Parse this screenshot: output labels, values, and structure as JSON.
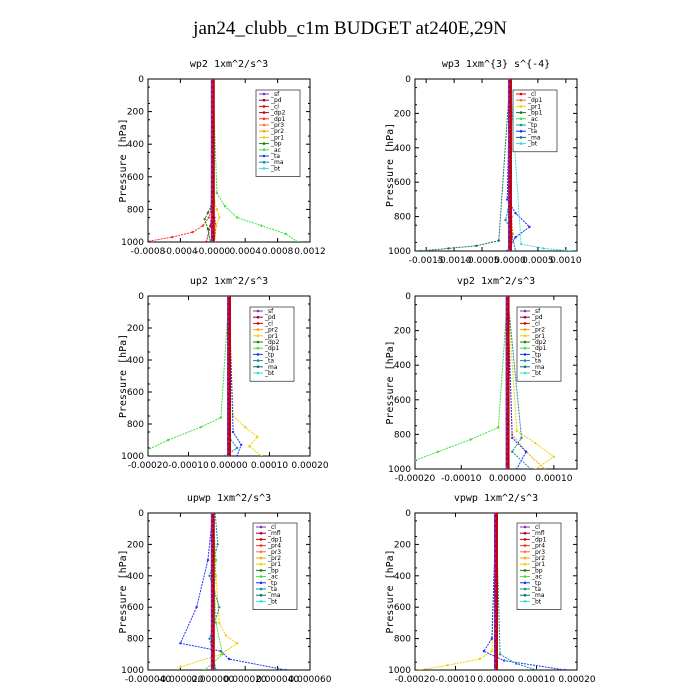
{
  "title": "jan24_clubb_c1m  BUDGET at240E,29N",
  "chart_data": [
    {
      "type": "line",
      "title": "wp2   1xm^2/s^3",
      "ylabel": "Pressure [hPa]",
      "xlim": [
        -0.0008,
        0.0012
      ],
      "ylim": [
        1000,
        0
      ],
      "xticks": [
        "-0.0008",
        "-0.0004",
        "-0.0000",
        "0.0004",
        "0.0008",
        "0.0012"
      ],
      "xtick_values": [
        -0.0008,
        -0.0004,
        0,
        0.0004,
        0.0008,
        0.0012
      ],
      "yticks": [
        "0",
        "200",
        "400",
        "600",
        "800",
        "1000"
      ],
      "legend": [
        "_sf",
        "_pd",
        "_cl",
        "_dp2",
        "_dp1",
        "_pr3",
        "_pr2",
        "_pr1",
        "_bp",
        "_ac",
        "_ta",
        "_ma",
        "_bt"
      ],
      "colors": [
        "#8030c0",
        "#a00040",
        "#e00000",
        "#c00010",
        "#ff3030",
        "#ff7030",
        "#ffa000",
        "#f0d000",
        "#108010",
        "#40e040",
        "#2030ff",
        "#1090a0",
        "#30e0e0"
      ],
      "series": [
        {
          "name": "_sf",
          "x": [
            0,
            0
          ],
          "y": [
            0,
            1000
          ]
        },
        {
          "name": "_pd",
          "x": [
            0,
            0,
            0,
            0
          ],
          "y": [
            0,
            800,
            900,
            1000
          ]
        },
        {
          "name": "_cl",
          "x": [
            0,
            0,
            0,
            0,
            2e-05,
            4e-05,
            2e-05
          ],
          "y": [
            0,
            600,
            750,
            800,
            850,
            900,
            1000
          ]
        },
        {
          "name": "_dp2",
          "x": [
            0,
            0,
            -1e-05,
            -3e-05,
            -8e-05
          ],
          "y": [
            0,
            600,
            800,
            900,
            1000
          ]
        },
        {
          "name": "_dp1",
          "x": [
            0,
            -2e-05,
            -5e-05,
            -0.00012,
            -0.00025,
            -0.0005,
            -0.00085
          ],
          "y": [
            0,
            800,
            850,
            900,
            940,
            970,
            1000
          ]
        },
        {
          "name": "_pr1",
          "x": [
            0,
            2e-05,
            5e-05,
            8e-05,
            4e-05,
            2e-05
          ],
          "y": [
            0,
            750,
            800,
            850,
            900,
            1000
          ]
        },
        {
          "name": "_bp",
          "x": [
            0,
            -2e-05,
            -6e-05,
            -0.0001,
            -6e-05,
            -3e-05
          ],
          "y": [
            0,
            780,
            820,
            860,
            920,
            1000
          ]
        },
        {
          "name": "_ac",
          "x": [
            0,
            5e-05,
            0.00015,
            0.0003,
            0.0006,
            0.0009,
            0.00105
          ],
          "y": [
            0,
            700,
            780,
            850,
            900,
            950,
            1000
          ]
        },
        {
          "name": "_bt",
          "x": [
            0,
            0,
            0,
            0
          ],
          "y": [
            0,
            500,
            900,
            1000
          ]
        }
      ]
    },
    {
      "type": "line",
      "title": "wp3   1xm^{3} s^{-4}",
      "ylabel": "Pressure [hPa]",
      "xlim": [
        -0.0017,
        0.0012
      ],
      "ylim": [
        1000,
        0
      ],
      "xticks": [
        "-0.0015",
        "-0.0010",
        "-0.0005",
        "0.0000",
        "0.0005",
        "0.0010"
      ],
      "xtick_values": [
        -0.0015,
        -0.001,
        -0.0005,
        0,
        0.0005,
        0.001
      ],
      "yticks": [
        "0",
        "200",
        "400",
        "600",
        "800",
        "1000"
      ],
      "legend": [
        "_cl",
        "_dp1",
        "_pr1",
        "_bp1",
        "_ac",
        "_tp",
        "_ta",
        "_ma",
        "_bt"
      ],
      "colors": [
        "#e00000",
        "#ff7030",
        "#f0d000",
        "#108010",
        "#40e040",
        "#1090a0",
        "#2030ff",
        "#107070",
        "#30e0e0"
      ],
      "series": [
        {
          "name": "_cl",
          "x": [
            0,
            0,
            0
          ],
          "y": [
            0,
            500,
            1000
          ]
        },
        {
          "name": "_dp1",
          "x": [
            0,
            3e-05,
            5e-05,
            2e-05
          ],
          "y": [
            0,
            800,
            900,
            1000
          ]
        },
        {
          "name": "_tp",
          "x": [
            0,
            -3e-05,
            -8e-05,
            2e-05,
            0.0001
          ],
          "y": [
            0,
            760,
            820,
            880,
            1000
          ]
        },
        {
          "name": "_ta",
          "x": [
            0,
            -5e-05,
            0.0001,
            0.00035,
            0.0001,
            -5e-05
          ],
          "y": [
            0,
            700,
            780,
            860,
            920,
            1000
          ]
        },
        {
          "name": "_ma",
          "x": [
            0,
            -0.0002,
            -0.0006,
            -0.0011,
            -0.0016
          ],
          "y": [
            0,
            940,
            970,
            985,
            1000
          ]
        },
        {
          "name": "_bt",
          "x": [
            0,
            0.0002,
            0.0006,
            0.0011
          ],
          "y": [
            0,
            960,
            985,
            1000
          ]
        }
      ]
    },
    {
      "type": "line",
      "title": "up2   1xm^2/s^3",
      "ylabel": "Pressure [hPa]",
      "xlim": [
        -0.0002,
        0.0002
      ],
      "ylim": [
        1000,
        0
      ],
      "xticks": [
        "-0.00020",
        "-0.00010",
        "0.00000",
        "0.00010",
        "0.00020"
      ],
      "xtick_values": [
        -0.0002,
        -0.0001,
        0,
        0.0001,
        0.0002
      ],
      "yticks": [
        "0",
        "200",
        "400",
        "600",
        "800",
        "1000"
      ],
      "legend": [
        "_sf",
        "_pd",
        "_cl",
        "_pr2",
        "_pr1",
        "_dp2",
        "_dp1",
        "_tp",
        "_ta",
        "_ma",
        "_bt"
      ],
      "colors": [
        "#8030c0",
        "#a00040",
        "#e00000",
        "#ffa000",
        "#f0d000",
        "#108010",
        "#40e040",
        "#2030ff",
        "#1090a0",
        "#107070",
        "#30e0e0"
      ],
      "series": [
        {
          "name": "_sf",
          "x": [
            0,
            0
          ],
          "y": [
            0,
            1000
          ]
        },
        {
          "name": "_cl",
          "x": [
            0,
            0,
            0
          ],
          "y": [
            0,
            500,
            1000
          ]
        },
        {
          "name": "_pr1",
          "x": [
            0,
            1e-05,
            4e-05,
            7e-05,
            5e-05,
            8e-05
          ],
          "y": [
            0,
            750,
            820,
            880,
            940,
            1000
          ]
        },
        {
          "name": "_dp1",
          "x": [
            0,
            -2e-05,
            -7e-05,
            -0.00015,
            -0.0002
          ],
          "y": [
            0,
            760,
            820,
            900,
            960
          ]
        },
        {
          "name": "_tp",
          "x": [
            0,
            1e-05,
            3e-05,
            2e-05
          ],
          "y": [
            0,
            850,
            930,
            1000
          ]
        },
        {
          "name": "_ta",
          "x": [
            0,
            0,
            2e-05,
            -1e-05
          ],
          "y": [
            0,
            880,
            950,
            1000
          ]
        },
        {
          "name": "_bt",
          "x": [
            0,
            0,
            0
          ],
          "y": [
            0,
            500,
            1000
          ]
        }
      ]
    },
    {
      "type": "line",
      "title": "vp2   1xm^2/s^3",
      "ylabel": "Pressure [hPa]",
      "xlim": [
        -0.0002,
        0.00015
      ],
      "ylim": [
        1000,
        0
      ],
      "xticks": [
        "-0.00020",
        "-0.00010",
        "0.00000",
        "0.00010"
      ],
      "xtick_values": [
        -0.0002,
        -0.0001,
        0,
        0.0001
      ],
      "yticks": [
        "0",
        "200",
        "400",
        "600",
        "800",
        "1000"
      ],
      "legend": [
        "_sf",
        "_pd",
        "_cl",
        "_pr2",
        "_pr1",
        "_dp2",
        "_dp1",
        "_tp",
        "_ta",
        "_ma",
        "_bt"
      ],
      "colors": [
        "#8030c0",
        "#a00040",
        "#e00000",
        "#ffa000",
        "#f0d000",
        "#108010",
        "#40e040",
        "#2030ff",
        "#1090a0",
        "#107070",
        "#30e0e0"
      ],
      "series": [
        {
          "name": "_sf",
          "x": [
            0,
            0
          ],
          "y": [
            0,
            1000
          ]
        },
        {
          "name": "_cl",
          "x": [
            0,
            0,
            0
          ],
          "y": [
            0,
            500,
            1000
          ]
        },
        {
          "name": "_pr1",
          "x": [
            0,
            2e-05,
            6e-05,
            0.0001,
            6e-05
          ],
          "y": [
            0,
            780,
            850,
            930,
            1000
          ]
        },
        {
          "name": "_pr2",
          "x": [
            0,
            1e-05,
            4e-05,
            8e-05
          ],
          "y": [
            0,
            800,
            900,
            1000
          ]
        },
        {
          "name": "_dp1",
          "x": [
            0,
            -2e-05,
            -8e-05,
            -0.00015,
            -0.0002
          ],
          "y": [
            0,
            760,
            830,
            900,
            950
          ]
        },
        {
          "name": "_tp",
          "x": [
            0,
            1e-05,
            4e-05,
            2e-05
          ],
          "y": [
            0,
            820,
            900,
            1000
          ]
        },
        {
          "name": "_ta",
          "x": [
            0,
            3e-05,
            1e-05,
            5e-05
          ],
          "y": [
            0,
            820,
            900,
            1000
          ]
        },
        {
          "name": "_bt",
          "x": [
            0,
            0,
            0
          ],
          "y": [
            0,
            500,
            1000
          ]
        }
      ]
    },
    {
      "type": "line",
      "title": "upwp   1xm^2/s^3",
      "ylabel": "Pressure [hPa]",
      "xlim": [
        -4e-05,
        6e-05
      ],
      "ylim": [
        1000,
        0
      ],
      "xticks": [
        "-0.000040",
        "-0.000020",
        "0.000000",
        "0.000020",
        "0.000040",
        "0.000060"
      ],
      "xtick_values": [
        -4e-05,
        -2e-05,
        0,
        2e-05,
        4e-05,
        6e-05
      ],
      "yticks": [
        "0",
        "200",
        "400",
        "600",
        "800",
        "1000"
      ],
      "legend": [
        "_cl",
        "_mfl",
        "_dp1",
        "_pr4",
        "_pr3",
        "_pr2",
        "_pr1",
        "_bp",
        "_ac",
        "_tp",
        "_ta",
        "_ma",
        "_bt"
      ],
      "colors": [
        "#8030c0",
        "#a00040",
        "#e00000",
        "#ff3030",
        "#ff7030",
        "#ffa000",
        "#f0d000",
        "#108010",
        "#40e040",
        "#2030ff",
        "#1090a0",
        "#107070",
        "#30e0e0"
      ],
      "series": [
        {
          "name": "_cl",
          "x": [
            0,
            0,
            0
          ],
          "y": [
            0,
            500,
            1000
          ]
        },
        {
          "name": "_pr1",
          "x": [
            0,
            2e-06,
            4e-06,
            8e-06,
            1.5e-05,
            5e-06,
            -2e-05
          ],
          "y": [
            0,
            400,
            700,
            780,
            830,
            900,
            980
          ]
        },
        {
          "name": "_tp",
          "x": [
            0,
            -3e-06,
            -1e-05,
            -2e-05,
            5e-06,
            1e-05,
            4.5e-05
          ],
          "y": [
            0,
            300,
            600,
            830,
            880,
            930,
            1000
          ]
        },
        {
          "name": "_ta",
          "x": [
            1.5e-06,
            3e-06,
            -2e-06,
            4e-06,
            -2e-06,
            2e-06
          ],
          "y": [
            0,
            200,
            400,
            600,
            800,
            1000
          ]
        },
        {
          "name": "_ac",
          "x": [
            0,
            2e-06,
            1e-06,
            2e-06,
            6e-06,
            -5e-06
          ],
          "y": [
            0,
            300,
            500,
            700,
            900,
            1000
          ]
        },
        {
          "name": "_bt",
          "x": [
            0,
            0,
            0
          ],
          "y": [
            0,
            500,
            1000
          ]
        }
      ]
    },
    {
      "type": "line",
      "title": "vpwp   1xm^2/s^3",
      "ylabel": "Pressure [hPa]",
      "xlim": [
        -0.0002,
        0.0002
      ],
      "ylim": [
        1000,
        0
      ],
      "xticks": [
        "-0.00020",
        "-0.00010",
        "0.00000",
        "0.00010",
        "0.00020"
      ],
      "xtick_values": [
        -0.0002,
        -0.0001,
        0,
        0.0001,
        0.0002
      ],
      "yticks": [
        "0",
        "200",
        "400",
        "600",
        "800",
        "1000"
      ],
      "legend": [
        "_cl",
        "_mfl",
        "_dp1",
        "_pr4",
        "_pr3",
        "_pr2",
        "_pr1",
        "_bp",
        "_ac",
        "_tp",
        "_ta",
        "_ma",
        "_bt"
      ],
      "colors": [
        "#8030c0",
        "#a00040",
        "#e00000",
        "#ff3030",
        "#ff7030",
        "#ffa000",
        "#f0d000",
        "#108010",
        "#40e040",
        "#2030ff",
        "#1090a0",
        "#107070",
        "#30e0e0"
      ],
      "series": [
        {
          "name": "_cl",
          "x": [
            0,
            0,
            0
          ],
          "y": [
            0,
            500,
            1000
          ]
        },
        {
          "name": "_pr1",
          "x": [
            0,
            -1e-05,
            -4e-05,
            -0.00012,
            -0.00019
          ],
          "y": [
            0,
            880,
            930,
            970,
            1000
          ]
        },
        {
          "name": "_tp",
          "x": [
            0,
            -1e-05,
            -3e-05,
            2e-05,
            0.00017
          ],
          "y": [
            0,
            800,
            880,
            940,
            1000
          ]
        },
        {
          "name": "_ta",
          "x": [
            0,
            1e-05,
            5e-05,
            0.0001
          ],
          "y": [
            0,
            900,
            960,
            1000
          ]
        },
        {
          "name": "_bt",
          "x": [
            0,
            0,
            0
          ],
          "y": [
            0,
            500,
            1000
          ]
        }
      ]
    }
  ]
}
